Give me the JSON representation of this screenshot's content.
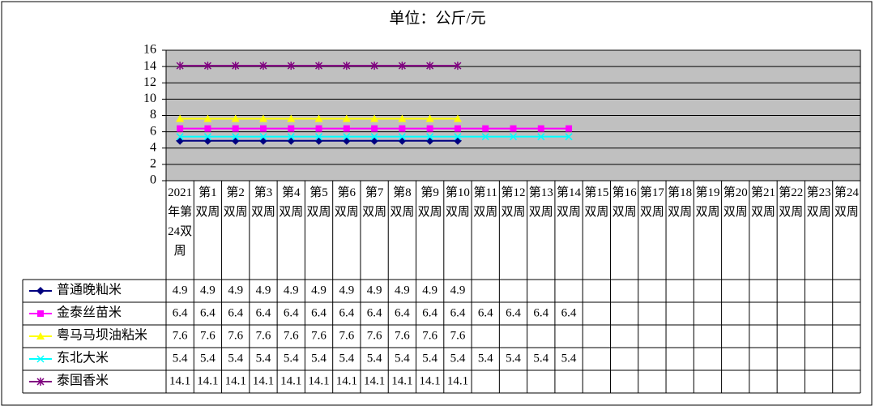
{
  "chart_data": {
    "type": "line",
    "title": "单位：公斤/元",
    "categories": [
      "2021年第24双周",
      "第1双周",
      "第2双周",
      "第3双周",
      "第4双周",
      "第5双周",
      "第6双周",
      "第7双周",
      "第8双周",
      "第9双周",
      "第10双周",
      "第11双周",
      "第12双周",
      "第13双周",
      "第14双周",
      "第15双周",
      "第16双周",
      "第17双周",
      "第18双周",
      "第19双周",
      "第20双周",
      "第21双周",
      "第22双周",
      "第23双周",
      "第24双周"
    ],
    "series": [
      {
        "name": "普通晚籼米",
        "color": "#000080",
        "marker": "diamond",
        "values": [
          4.9,
          4.9,
          4.9,
          4.9,
          4.9,
          4.9,
          4.9,
          4.9,
          4.9,
          4.9,
          4.9,
          null,
          null,
          null,
          null,
          null,
          null,
          null,
          null,
          null,
          null,
          null,
          null,
          null,
          null
        ]
      },
      {
        "name": "金泰丝苗米",
        "color": "#ff00ff",
        "marker": "square",
        "values": [
          6.4,
          6.4,
          6.4,
          6.4,
          6.4,
          6.4,
          6.4,
          6.4,
          6.4,
          6.4,
          6.4,
          6.4,
          6.4,
          6.4,
          6.4,
          null,
          null,
          null,
          null,
          null,
          null,
          null,
          null,
          null,
          null
        ]
      },
      {
        "name": "粤马马坝油粘米",
        "color": "#ffff00",
        "marker": "triangle",
        "values": [
          7.6,
          7.6,
          7.6,
          7.6,
          7.6,
          7.6,
          7.6,
          7.6,
          7.6,
          7.6,
          7.6,
          null,
          null,
          null,
          null,
          null,
          null,
          null,
          null,
          null,
          null,
          null,
          null,
          null,
          null
        ]
      },
      {
        "name": "东北大米",
        "color": "#00ffff",
        "marker": "x",
        "values": [
          5.4,
          5.4,
          5.4,
          5.4,
          5.4,
          5.4,
          5.4,
          5.4,
          5.4,
          5.4,
          5.4,
          5.4,
          5.4,
          5.4,
          5.4,
          null,
          null,
          null,
          null,
          null,
          null,
          null,
          null,
          null,
          null
        ]
      },
      {
        "name": "泰国香米",
        "color": "#800080",
        "marker": "star",
        "values": [
          14.1,
          14.1,
          14.1,
          14.1,
          14.1,
          14.1,
          14.1,
          14.1,
          14.1,
          14.1,
          14.1,
          null,
          null,
          null,
          null,
          null,
          null,
          null,
          null,
          null,
          null,
          null,
          null,
          null,
          null
        ]
      }
    ],
    "ylim": [
      0,
      16
    ],
    "yticks": [
      0,
      2,
      4,
      6,
      8,
      10,
      12,
      14,
      16
    ],
    "grid": true,
    "plot_background": "#c0c0c0"
  }
}
